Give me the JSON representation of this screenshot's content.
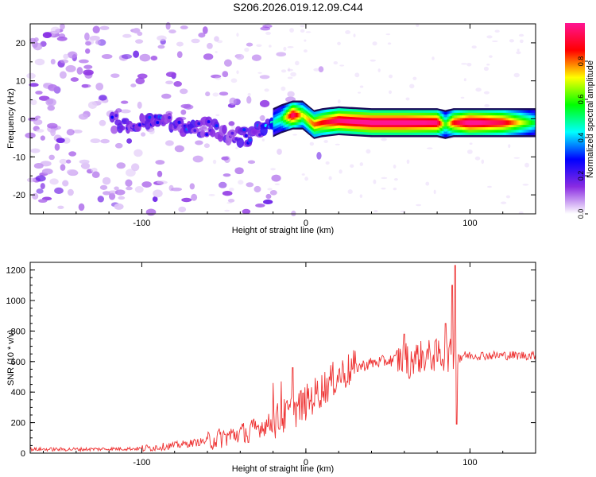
{
  "title": "S206.2026.019.12.09.C44",
  "chart_data": [
    {
      "type": "heatmap",
      "xlabel": "Height of straight line (km)",
      "ylabel": "Frequency (Hz)",
      "xlim": [
        -168,
        140
      ],
      "ylim": [
        -25,
        25
      ],
      "xticks": [
        -100,
        0,
        100
      ],
      "yticks": [
        -20,
        -10,
        0,
        10,
        20
      ],
      "colorbar": {
        "label": "Normalized spectral amplitude",
        "range": [
          0,
          1
        ],
        "ticks": [
          "0.0",
          "0.2",
          "0.4",
          "0.6",
          "0.8"
        ],
        "colors": [
          "#ffffff",
          "#8a2be2",
          "#0000ff",
          "#00ffff",
          "#00ff00",
          "#ffff00",
          "#ff0000",
          "#ff1493"
        ]
      },
      "ridge": {
        "x": [
          -118,
          -100,
          -80,
          -60,
          -45,
          -35,
          -25,
          -15,
          -8,
          -2,
          5,
          10,
          20,
          40,
          60,
          80,
          85,
          90,
          100,
          120,
          140
        ],
        "freq": [
          -1,
          -1,
          -1.5,
          -2.5,
          -4,
          -5,
          -2,
          0,
          1,
          1,
          -1.5,
          -1,
          -0.5,
          -1,
          -1,
          -1,
          -1.5,
          -1,
          -1,
          -1,
          -1
        ],
        "amplitude": [
          0.25,
          0.3,
          0.3,
          0.3,
          0.25,
          0.3,
          0.35,
          0.45,
          0.85,
          0.6,
          0.7,
          0.75,
          0.85,
          0.9,
          0.9,
          0.85,
          0.5,
          0.75,
          0.9,
          0.8,
          0.45
        ]
      }
    },
    {
      "type": "line",
      "xlabel": "Height of straight line (km)",
      "ylabel": "SNR (10 * v/v)",
      "xlim": [
        -168,
        140
      ],
      "ylim": [
        0,
        1250
      ],
      "xticks": [
        -100,
        0,
        100
      ],
      "yticks": [
        0,
        200,
        400,
        600,
        800,
        1000,
        1200
      ],
      "color": "#ee3333",
      "trend_x": [
        -168,
        -140,
        -100,
        -80,
        -60,
        -40,
        -20,
        -10,
        0,
        10,
        20,
        30,
        40,
        60,
        80,
        90,
        100,
        120,
        140
      ],
      "trend_y": [
        25,
        25,
        30,
        50,
        80,
        130,
        200,
        260,
        330,
        420,
        510,
        560,
        590,
        620,
        640,
        640,
        640,
        640,
        640
      ],
      "spikes": [
        {
          "x": 91,
          "y": 1230
        },
        {
          "x": 92,
          "y": 190
        },
        {
          "x": 89,
          "y": 1100
        },
        {
          "x": 85,
          "y": 850
        },
        {
          "x": 60,
          "y": 780
        },
        {
          "x": 63,
          "y": 490
        },
        {
          "x": -8,
          "y": 560
        },
        {
          "x": -15,
          "y": 470
        },
        {
          "x": -20,
          "y": 460
        },
        {
          "x": -35,
          "y": 70
        }
      ]
    }
  ]
}
